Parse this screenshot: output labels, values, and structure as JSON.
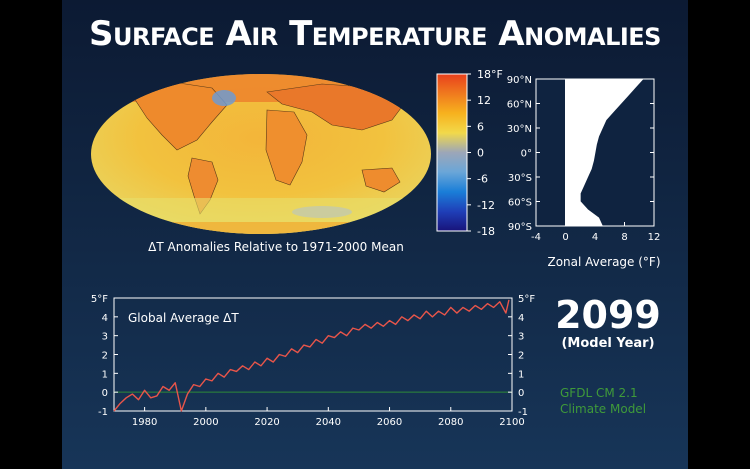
{
  "title": "Surface Air Temperature Anomalies",
  "map": {
    "caption": "ΔT Anomalies Relative to 1971-2000 Mean"
  },
  "colorbar": {
    "ticks": [
      "18°F",
      "12",
      "6",
      "0",
      "-6",
      "-12",
      "-18"
    ],
    "values": [
      18,
      12,
      6,
      0,
      -6,
      -12,
      -18
    ],
    "colors": [
      "#e8401c",
      "#f07a1e",
      "#f7b21e",
      "#f2d94a",
      "#9ca6b8",
      "#6aa6d8",
      "#1a7ed8",
      "#1f3fb8",
      "#18137a"
    ]
  },
  "year": {
    "value": "2099",
    "caption": "(Model Year)"
  },
  "model": {
    "line1": "GFDL CM 2.1",
    "line2": "Climate Model"
  },
  "colors": {
    "background": "#122947",
    "series_line": "#e8554a",
    "zero_line": "#2f8a3a",
    "model_text": "#3f9a3a"
  },
  "chart_data": [
    {
      "type": "area",
      "title": "",
      "xlabel": "Zonal Average (°F)",
      "ylabel": "",
      "x_ticks": [
        "-4",
        "0",
        "4",
        "8",
        "12"
      ],
      "xlim": [
        -4,
        12
      ],
      "y_ticks": [
        "90°N",
        "60°N",
        "30°N",
        "0°",
        "30°S",
        "60°S",
        "90°S"
      ],
      "ylim": [
        -90,
        90
      ],
      "series": [
        {
          "lat": [
            90,
            80,
            70,
            60,
            50,
            40,
            30,
            20,
            10,
            0,
            -10,
            -20,
            -30,
            -40,
            -50,
            -60,
            -70,
            -80,
            -90
          ],
          "values": [
            10.5,
            9.5,
            8.5,
            7.5,
            6.5,
            5.5,
            5.0,
            4.5,
            4.2,
            4.0,
            3.8,
            3.5,
            3.0,
            2.5,
            2.0,
            2.0,
            3.0,
            4.5,
            5.0
          ]
        }
      ]
    },
    {
      "type": "line",
      "title": "Global Average ΔT",
      "xlabel": "",
      "ylabel": "",
      "x_ticks": [
        "1980",
        "2000",
        "2020",
        "2040",
        "2060",
        "2080",
        "2100"
      ],
      "xlim": [
        1970,
        2100
      ],
      "y_ticks": [
        "5°F",
        "4",
        "3",
        "2",
        "1",
        "0",
        "-1"
      ],
      "ylim": [
        -1,
        5
      ],
      "series": [
        {
          "x": [
            1970,
            1972,
            1974,
            1976,
            1978,
            1980,
            1982,
            1984,
            1986,
            1988,
            1990,
            1992,
            1994,
            1996,
            1998,
            2000,
            2002,
            2004,
            2006,
            2008,
            2010,
            2012,
            2014,
            2016,
            2018,
            2020,
            2022,
            2024,
            2026,
            2028,
            2030,
            2032,
            2034,
            2036,
            2038,
            2040,
            2042,
            2044,
            2046,
            2048,
            2050,
            2052,
            2054,
            2056,
            2058,
            2060,
            2062,
            2064,
            2066,
            2068,
            2070,
            2072,
            2074,
            2076,
            2078,
            2080,
            2082,
            2084,
            2086,
            2088,
            2090,
            2092,
            2094,
            2096,
            2098,
            2099
          ],
          "values": [
            -1.0,
            -0.6,
            -0.3,
            -0.1,
            -0.4,
            0.1,
            -0.3,
            -0.2,
            0.3,
            0.1,
            0.5,
            -1.0,
            -0.1,
            0.4,
            0.3,
            0.7,
            0.6,
            1.0,
            0.8,
            1.2,
            1.1,
            1.4,
            1.2,
            1.6,
            1.4,
            1.8,
            1.6,
            2.0,
            1.9,
            2.3,
            2.1,
            2.5,
            2.4,
            2.8,
            2.6,
            3.0,
            2.9,
            3.2,
            3.0,
            3.4,
            3.3,
            3.6,
            3.4,
            3.7,
            3.5,
            3.8,
            3.6,
            4.0,
            3.8,
            4.1,
            3.9,
            4.3,
            4.0,
            4.3,
            4.1,
            4.5,
            4.2,
            4.5,
            4.3,
            4.6,
            4.4,
            4.7,
            4.5,
            4.8,
            4.2,
            4.9
          ]
        }
      ]
    }
  ]
}
